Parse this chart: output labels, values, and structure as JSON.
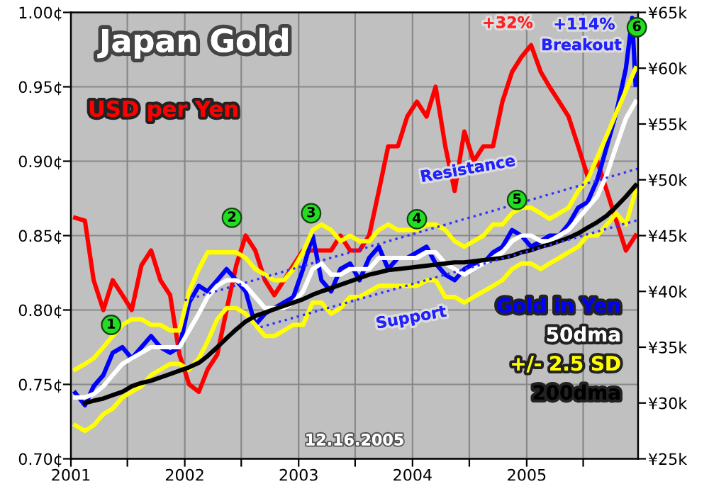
{
  "chart_data": {
    "type": "line",
    "title": "Japan Gold",
    "x": [
      "2001-01-15",
      "2001-02-15",
      "2001-03-15",
      "2001-04-15",
      "2001-05-15",
      "2001-06-15",
      "2001-07-15",
      "2001-08-15",
      "2001-09-15",
      "2001-10-15",
      "2001-11-15",
      "2001-12-15",
      "2002-01-15",
      "2002-02-15",
      "2002-03-15",
      "2002-04-15",
      "2002-05-15",
      "2002-06-15",
      "2002-07-15",
      "2002-08-15",
      "2002-09-15",
      "2002-10-15",
      "2002-11-15",
      "2002-12-15",
      "2003-01-15",
      "2003-02-15",
      "2003-03-15",
      "2003-04-15",
      "2003-05-15",
      "2003-06-15",
      "2003-07-15",
      "2003-08-15",
      "2003-09-15",
      "2003-10-15",
      "2003-11-15",
      "2003-12-15",
      "2004-01-15",
      "2004-02-15",
      "2004-03-15",
      "2004-04-15",
      "2004-05-15",
      "2004-06-15",
      "2004-07-15",
      "2004-08-15",
      "2004-09-15",
      "2004-10-15",
      "2004-11-15",
      "2004-12-15",
      "2005-01-15",
      "2005-02-15",
      "2005-03-15",
      "2005-04-15",
      "2005-05-15",
      "2005-06-15",
      "2005-07-15",
      "2005-08-15",
      "2005-09-15",
      "2005-10-15",
      "2005-11-15",
      "2005-12-16"
    ],
    "series": [
      {
        "name": "USD per Yen",
        "color": "#ff0000",
        "values": [
          0.862,
          0.86,
          0.82,
          0.8,
          0.82,
          0.81,
          0.8,
          0.83,
          0.84,
          0.82,
          0.81,
          0.77,
          0.75,
          0.745,
          0.76,
          0.77,
          0.8,
          0.83,
          0.85,
          0.84,
          0.82,
          0.81,
          0.82,
          0.83,
          0.84,
          0.84,
          0.84,
          0.84,
          0.85,
          0.84,
          0.84,
          0.85,
          0.88,
          0.91,
          0.91,
          0.93,
          0.94,
          0.93,
          0.95,
          0.91,
          0.88,
          0.92,
          0.9,
          0.91,
          0.91,
          0.94,
          0.96,
          0.97,
          0.978,
          0.96,
          0.95,
          0.94,
          0.93,
          0.91,
          0.89,
          0.9,
          0.88,
          0.86,
          0.84,
          0.85
        ]
      },
      {
        "name": "Gold in Yen",
        "color": "#0000ff",
        "axis": "y2",
        "x": [
          "2001-01-15",
          "2001-02-15",
          "2001-03-15",
          "2001-04-15",
          "2001-05-15",
          "2001-06-15",
          "2001-07-15",
          "2001-08-15",
          "2001-09-15",
          "2001-10-15",
          "2001-11-15",
          "2001-12-15",
          "2002-01-15",
          "2002-02-15",
          "2002-03-15",
          "2002-04-15",
          "2002-05-15",
          "2002-06-15",
          "2002-07-15",
          "2002-08-15",
          "2002-09-15",
          "2002-10-15",
          "2002-11-15",
          "2002-12-15",
          "2003-01-15",
          "2003-02-15",
          "2003-03-15",
          "2003-04-15",
          "2003-05-15",
          "2003-06-15",
          "2003-07-15",
          "2003-08-15",
          "2003-09-15",
          "2003-10-15",
          "2003-11-15",
          "2003-12-15",
          "2004-01-15",
          "2004-02-15",
          "2004-03-15",
          "2004-04-15",
          "2004-05-15",
          "2004-06-15",
          "2004-07-15",
          "2004-08-15",
          "2004-09-15",
          "2004-10-15",
          "2004-11-15",
          "2004-12-15",
          "2005-01-15",
          "2005-02-15",
          "2005-03-15",
          "2005-04-15",
          "2005-05-15",
          "2005-06-15",
          "2005-07-15",
          "2005-08-15",
          "2005-09-15",
          "2005-10-15",
          "2005-11-15",
          "2005-12-05",
          "2005-12-16"
        ],
        "values": [
          30.9,
          29.8,
          31.5,
          32.5,
          34.5,
          35,
          34,
          35,
          36,
          35,
          34.5,
          35,
          39,
          40.5,
          40,
          41,
          42,
          41,
          40,
          37,
          38,
          38.5,
          39,
          39.5,
          42,
          45,
          41,
          40,
          42,
          42.5,
          41,
          43,
          44,
          42,
          43,
          43,
          43.5,
          44,
          42.5,
          41.5,
          41,
          42,
          42.5,
          42.5,
          43.5,
          44,
          45.5,
          45,
          44,
          44.5,
          45,
          45,
          46,
          47.5,
          48,
          50,
          53,
          56,
          60,
          64.5,
          58.5
        ]
      },
      {
        "name": "50dma",
        "color": "#ffffff",
        "axis": "y2",
        "values": [
          30.5,
          30.5,
          30.8,
          31.5,
          32.5,
          33.5,
          34,
          34.5,
          35,
          35,
          35,
          35,
          36.5,
          38,
          39.5,
          40.5,
          41,
          41,
          40.5,
          39.5,
          38.5,
          38.5,
          38.5,
          39,
          40,
          42,
          42.5,
          41.5,
          41.5,
          42,
          42,
          42,
          43,
          43,
          43,
          43,
          43,
          43.5,
          43.5,
          42.5,
          42,
          41.5,
          42,
          42.5,
          43,
          43.5,
          44.5,
          45,
          45,
          44.5,
          44.5,
          45,
          45.5,
          46.5,
          47.5,
          48.5,
          50.5,
          53,
          55.5,
          57
        ]
      },
      {
        "name": "+/- 2.5 SD",
        "color": "#ffff00",
        "axis": "y2",
        "values": [
          33,
          33.5,
          34,
          35,
          36,
          37,
          37.5,
          37.5,
          37,
          37,
          36.5,
          36.5,
          40,
          42,
          43.5,
          43.5,
          43.5,
          43.5,
          43,
          42,
          41.5,
          41,
          41,
          42,
          43.5,
          45.5,
          46,
          45.5,
          44.5,
          45,
          44.5,
          44.5,
          45.5,
          46,
          45.5,
          45.5,
          45.5,
          46,
          46,
          45.5,
          44.5,
          44,
          44.5,
          45,
          46,
          46,
          47,
          47.5,
          47.5,
          47,
          46.5,
          47,
          47.5,
          49,
          50,
          52,
          54,
          56,
          58,
          60
        ]
      },
      {
        "color": "#ffff00",
        "axis": "y2",
        "values": [
          28,
          27.5,
          28,
          29,
          29.5,
          30.5,
          31,
          31.5,
          32.5,
          33,
          33.5,
          33.5,
          33,
          34,
          35.5,
          37.5,
          38.5,
          38.5,
          38,
          37,
          36,
          36,
          36.5,
          37,
          37,
          39,
          39,
          38,
          38.5,
          39.5,
          39.5,
          40,
          40.5,
          40.5,
          40.5,
          40.5,
          40.5,
          41,
          41,
          39.5,
          39.5,
          39,
          39.5,
          40,
          40.5,
          41,
          42,
          42.5,
          42.5,
          42,
          42.5,
          43,
          43.5,
          44,
          45,
          45,
          46,
          47,
          46,
          49
        ]
      },
      {
        "name": "200dma",
        "color": "#000000",
        "axis": "y2",
        "values": [
          null,
          30,
          30.2,
          30.4,
          30.7,
          31,
          31.5,
          31.8,
          32,
          32.3,
          32.6,
          32.9,
          33.2,
          33.6,
          34.2,
          35,
          35.8,
          36.6,
          37.3,
          37.8,
          38.1,
          38.4,
          38.7,
          39,
          39.3,
          39.7,
          40,
          40.3,
          40.6,
          40.9,
          41.2,
          41.5,
          41.7,
          41.9,
          42,
          42.1,
          42.2,
          42.3,
          42.4,
          42.5,
          42.6,
          42.6,
          42.7,
          42.8,
          42.9,
          43,
          43.2,
          43.5,
          43.7,
          44,
          44.2,
          44.5,
          44.8,
          45.2,
          45.7,
          46.2,
          46.8,
          47.6,
          48.5,
          49.5
        ]
      },
      {
        "color": "#3333ff",
        "axis": "y2",
        "line_style": "dotted",
        "x": [
          "2002-01-01",
          "2005-12-24"
        ],
        "values": [
          39.2,
          51
        ]
      },
      {
        "color": "#3333ff",
        "axis": "y2",
        "line_style": "dotted",
        "x": [
          "2002-09-01",
          "2005-12-24"
        ],
        "values": [
          36.8,
          46.4
        ]
      }
    ],
    "xlim": [
      "2001-01-01",
      "2005-12-24"
    ],
    "xticks": [
      "2001",
      {
        "value": "2001-07-01",
        "label": null
      },
      "2002",
      {
        "value": "2002-07-01",
        "label": null
      },
      "2003",
      {
        "value": "2003-07-01",
        "label": null
      },
      "2004",
      {
        "value": "2004-07-01",
        "label": null
      },
      "2005",
      {
        "value": "2005-07-01",
        "label": null
      }
    ],
    "ylim": [
      0.7,
      1.0
    ],
    "yticks": [
      {
        "value": 0.7,
        "label": "0.70¢"
      },
      {
        "value": 0.75,
        "label": "0.75¢"
      },
      {
        "value": 0.8,
        "label": "0.80¢"
      },
      {
        "value": 0.85,
        "label": "0.85¢"
      },
      {
        "value": 0.9,
        "label": "0.90¢"
      },
      {
        "value": 0.95,
        "label": "0.95¢"
      },
      {
        "value": 1.0,
        "label": "1.00¢"
      }
    ],
    "y2lim": [
      25,
      65
    ],
    "y2ticks": [
      {
        "value": 25,
        "label": "¥25k"
      },
      {
        "value": 30,
        "label": "¥30k"
      },
      {
        "value": 35,
        "label": "¥35k"
      },
      {
        "value": 40,
        "label": "¥40k"
      },
      {
        "value": 45,
        "label": "¥45k"
      },
      {
        "value": 50,
        "label": "¥50k"
      },
      {
        "value": 55,
        "label": "¥55k"
      },
      {
        "value": 60,
        "label": "¥60k"
      },
      {
        "value": 65,
        "label": "¥65k"
      }
    ],
    "grid": true,
    "legend": "bottom right",
    "marker": "none",
    "annotations": [
      {
        "text": "1",
        "x": "2001-05-10",
        "y": 0.79
      },
      {
        "text": "2",
        "x": "2002-06-01",
        "y": 0.862
      },
      {
        "text": "3",
        "x": "2003-02-10",
        "y": 0.865
      },
      {
        "text": "4",
        "x": "2004-01-15",
        "y": 0.861
      },
      {
        "text": "5",
        "x": "2004-12-01",
        "y": 0.874
      },
      {
        "text": "6",
        "x": "2005-12-20",
        "y": 0.99
      },
      "+32%",
      "+114%",
      "Breakout",
      "Resistance",
      "Support",
      "12.16.2005"
    ]
  }
}
